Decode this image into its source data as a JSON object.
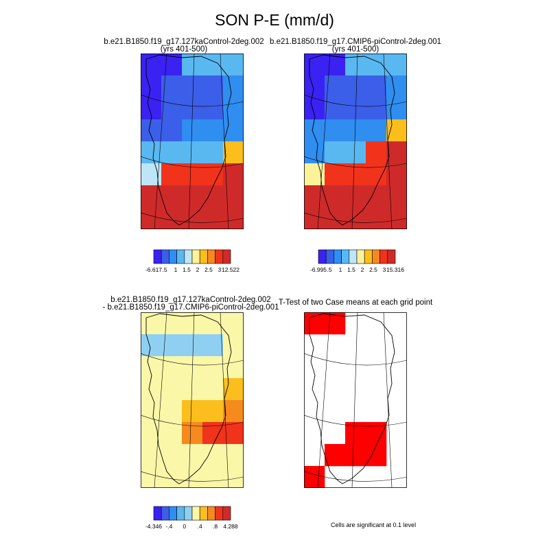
{
  "figure": {
    "title": "SON P-E (mm/d)",
    "significance_note": "Cells are significant at 0.1 level"
  },
  "palettes": {
    "full": [
      "#3a22f2",
      "#3b5fe8",
      "#2f8ef0",
      "#5ab8f0",
      "#bfe6f7",
      "#fbf29a",
      "#fbbe1c",
      "#f68a1f",
      "#f1331c",
      "#cf2a2a"
    ],
    "diff": [
      "#3a22f2",
      "#3b5fe8",
      "#2f8ef0",
      "#5ab8f0",
      "#8fd0f2",
      "#fbf7a8",
      "#fbbe1c",
      "#f68a1f",
      "#f1331c",
      "#d02b2b"
    ],
    "sig": "#ff0000"
  },
  "chart_data": [
    {
      "type": "heatmap",
      "title": "b.e21.B1850.f19_g17.127kaControl-2deg.002",
      "subtitle": "(yrs 401-500)",
      "colorbar_labels": [
        "-6.617",
        ".5",
        "1",
        "1.5",
        "2",
        "2.5",
        "3",
        "12.522"
      ],
      "grid_levels": [
        "00333",
        "01112",
        "01112",
        "11222",
        "33336",
        "48889",
        "99999",
        "99999"
      ]
    },
    {
      "type": "heatmap",
      "title": "b.e21.B1850.f19_g17.CMIP6-piControl-2deg.001",
      "subtitle": "(yrs 401-500)",
      "colorbar_labels": [
        "-6.995",
        ".5",
        "1",
        "1.5",
        "2",
        "2.5",
        "3",
        "15.316"
      ],
      "grid_levels": [
        "00333",
        "01112",
        "01112",
        "22226",
        "23389",
        "58889",
        "99999",
        "99999"
      ]
    },
    {
      "type": "heatmap",
      "title": "b.e21.B1850.f19_g17.127kaControl-2deg.002",
      "subtitle": "- b.e21.B1850.f19_g17.CMIP6-piControl-2deg.001",
      "colorbar_labels": [
        "-4.346",
        "-.4",
        "0",
        ".4",
        ".8",
        "4.288"
      ],
      "grid_levels": [
        "55555",
        "44445",
        "55555",
        "55556",
        "55667",
        "55788",
        "55555",
        "55555"
      ]
    },
    {
      "type": "heatmap",
      "title": "T-Test of two Case means at each grid point",
      "subtitle": "",
      "grid_significant": [
        "11000",
        "00000",
        "00000",
        "00000",
        "00000",
        "00110",
        "01110",
        "10000"
      ]
    }
  ]
}
